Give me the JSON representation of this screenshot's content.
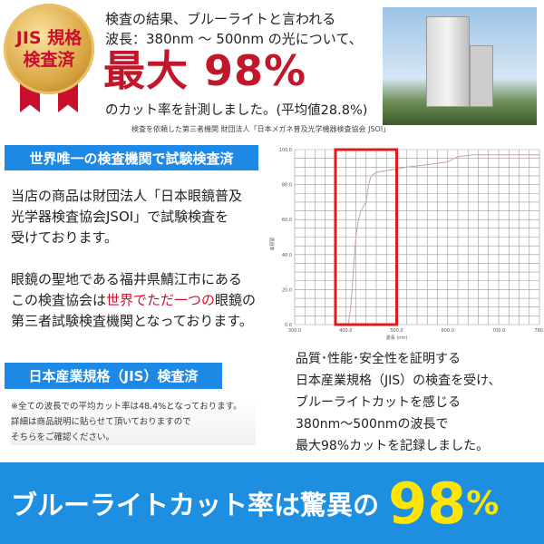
{
  "badge": {
    "line1": "JIS 規格",
    "line2": "検査済"
  },
  "headline": {
    "line1": "検査の結果、ブルーライトと言われる",
    "line2": "波長：380nm 〜 500nm の光について、",
    "big": "最大 98%",
    "line3": "のカット率を計測しました。(平均値28.8%)",
    "caption": "検査を依頼した第三者機関 財団法人「日本メガネ普及光学機器検査協会 JSOI」"
  },
  "section1": {
    "banner": "世界唯一の検査機関で試験検査済",
    "lines": [
      "当店の商品は財団法人「日本眼鏡普及",
      "光学器検査協会JSOI」で試験検査を",
      "受けております。"
    ],
    "lines2_a": "眼鏡の聖地である福井県鯖江市にある",
    "lines2_b_pre": "この検査協会は",
    "lines2_b_red": "世界でただ一つの",
    "lines2_b_post": "眼鏡の",
    "lines2_c": "第三者試験検査機関となっております。"
  },
  "section2": {
    "banner": "日本産業規格（JIS）検査済",
    "notes": [
      "※全ての波長での平均カット率は48.4%となっております。",
      "詳細は商品説明に貼らせて頂いておりますので",
      "そちらをご確認ください。"
    ]
  },
  "right_text": [
    "品質･性能･安全性を証明する",
    "日本産業規格（JIS）の検査を受け、",
    "ブルーライトカットを感じる",
    "380nm〜500nmの波長で",
    "最大98%カットを記録しました。"
  ],
  "bottom": {
    "text": "ブルーライトカット率は驚異の",
    "number": "98",
    "percent": "%"
  },
  "colors": {
    "blue": "#1e88e5",
    "red": "#c0172a",
    "yellow": "#ffe500"
  },
  "chart_data": {
    "type": "line",
    "xlabel": "波長 (nm)",
    "ylabel": "透過率",
    "xlim": [
      300,
      780
    ],
    "ylim": [
      0,
      100
    ],
    "grid": true,
    "xticks": [
      "300.0",
      "400.0",
      "500.0",
      "600.0",
      "700.0",
      "780."
    ],
    "yticks": [
      "0.0",
      "20.0",
      "40.0",
      "60.0",
      "80.0",
      "100.0"
    ],
    "highlight_range": [
      380,
      500
    ],
    "x": [
      400,
      405,
      410,
      415,
      420,
      425,
      430,
      440,
      445,
      450,
      460,
      480,
      500,
      520,
      550,
      600,
      620,
      650,
      700,
      780
    ],
    "y": [
      0,
      0,
      10,
      30,
      50,
      60,
      65,
      70,
      80,
      85,
      87,
      88,
      89,
      90,
      91,
      93,
      96,
      97,
      97,
      97
    ]
  }
}
